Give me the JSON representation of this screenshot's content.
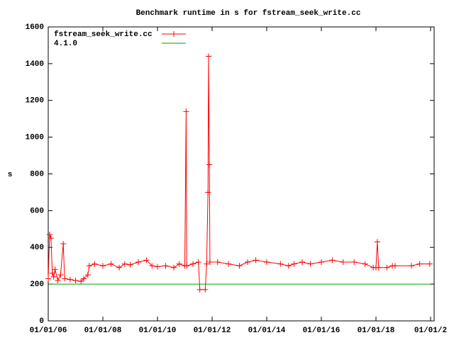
{
  "chart_data": {
    "type": "line",
    "title": "Benchmark runtime in s for fstream_seek_write.cc",
    "y_label": "s",
    "xlim": [
      2006,
      2020.13
    ],
    "xticks": [
      {
        "value": 2006,
        "label": "01/01/06"
      },
      {
        "value": 2008,
        "label": "01/01/08"
      },
      {
        "value": 2010,
        "label": "01/01/10"
      },
      {
        "value": 2012,
        "label": "01/01/12"
      },
      {
        "value": 2014,
        "label": "01/01/14"
      },
      {
        "value": 2016,
        "label": "01/01/16"
      },
      {
        "value": 2018,
        "label": "01/01/18"
      },
      {
        "value": 2020,
        "label": "01/01/2"
      }
    ],
    "ylim": [
      0,
      1600
    ],
    "yticks": [
      0,
      200,
      400,
      600,
      800,
      1000,
      1200,
      1400,
      1600
    ],
    "legend": "top-left",
    "series": [
      {
        "name": "fstream_seek_write.cc",
        "color": "#ff0000",
        "markers": true,
        "x": [
          2006.0,
          2006.05,
          2006.1,
          2006.15,
          2006.2,
          2006.25,
          2006.35,
          2006.45,
          2006.55,
          2006.6,
          2006.8,
          2007.0,
          2007.2,
          2007.3,
          2007.45,
          2007.5,
          2007.7,
          2008.0,
          2008.3,
          2008.6,
          2008.8,
          2009.0,
          2009.3,
          2009.6,
          2009.8,
          2010.0,
          2010.3,
          2010.6,
          2010.8,
          2011.0,
          2011.05,
          2011.07,
          2011.3,
          2011.5,
          2011.55,
          2011.75,
          2011.8,
          2011.85,
          2011.87,
          2011.9,
          2011.92,
          2012.2,
          2012.6,
          2013.0,
          2013.3,
          2013.6,
          2014.0,
          2014.5,
          2014.8,
          2015.0,
          2015.3,
          2015.6,
          2016.0,
          2016.4,
          2016.8,
          2017.2,
          2017.6,
          2017.9,
          2018.0,
          2018.05,
          2018.1,
          2018.4,
          2018.6,
          2018.7,
          2019.3,
          2019.6,
          2019.97
        ],
        "values": [
          230,
          470,
          450,
          260,
          240,
          280,
          220,
          250,
          420,
          230,
          225,
          220,
          215,
          230,
          250,
          300,
          310,
          300,
          310,
          290,
          310,
          305,
          320,
          330,
          300,
          295,
          300,
          290,
          310,
          300,
          1140,
          300,
          310,
          320,
          170,
          170,
          310,
          700,
          1440,
          850,
          320,
          320,
          310,
          300,
          320,
          330,
          320,
          310,
          300,
          310,
          320,
          310,
          320,
          330,
          320,
          320,
          310,
          290,
          290,
          430,
          290,
          290,
          300,
          300,
          300,
          310,
          310
        ]
      },
      {
        "name": "4.1.0",
        "color": "#00a000",
        "markers": false,
        "x": [
          2006.0,
          2019.97
        ],
        "values": [
          200,
          200
        ]
      }
    ]
  }
}
